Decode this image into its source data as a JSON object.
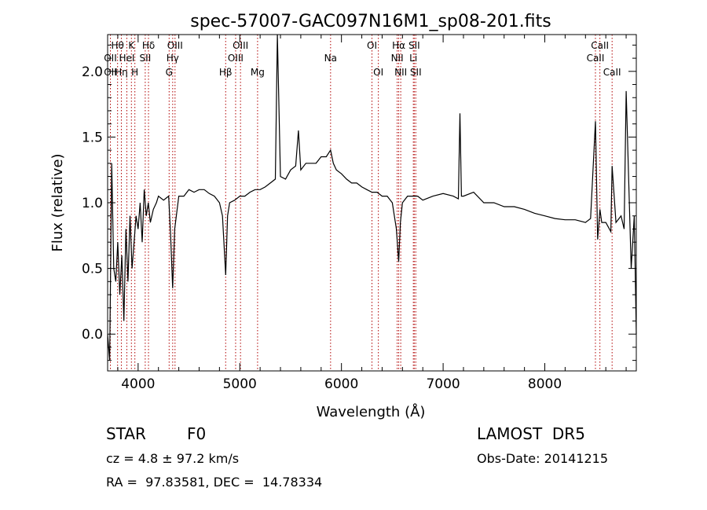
{
  "chart_data": {
    "type": "line",
    "title": "spec-57007-GAC097N16M1_sp08-201.fits",
    "xlabel": "Wavelength (Å)",
    "ylabel": "Flux (relative)",
    "xlim": [
      3700,
      8900
    ],
    "ylim": [
      -0.28,
      2.28
    ],
    "x_ticks": [
      4000,
      5000,
      6000,
      7000,
      8000
    ],
    "x_tick_labels": [
      "4000",
      "5000",
      "6000",
      "7000",
      "8000"
    ],
    "y_ticks": [
      0.0,
      0.5,
      1.0,
      1.5,
      2.0
    ],
    "y_tick_labels": [
      "0.0",
      "0.5",
      "1.0",
      "1.5",
      "2.0"
    ],
    "grid": false,
    "series": [
      {
        "x": [
          3700,
          3720,
          3740,
          3760,
          3780,
          3800,
          3820,
          3840,
          3860,
          3880,
          3900,
          3920,
          3940,
          3960,
          3980,
          4000,
          4020,
          4040,
          4060,
          4080,
          4100,
          4120,
          4150,
          4180,
          4200,
          4250,
          4300,
          4320,
          4340,
          4360,
          4400,
          4450,
          4500,
          4550,
          4600,
          4650,
          4700,
          4750,
          4800,
          4830,
          4861,
          4880,
          4900,
          4950,
          5000,
          5050,
          5100,
          5150,
          5200,
          5250,
          5300,
          5350,
          5370,
          5400,
          5450,
          5500,
          5550,
          5577,
          5600,
          5650,
          5700,
          5750,
          5800,
          5850,
          5893,
          5920,
          5950,
          6000,
          6050,
          6100,
          6150,
          6200,
          6250,
          6300,
          6350,
          6400,
          6450,
          6500,
          6540,
          6563,
          6580,
          6600,
          6650,
          6700,
          6750,
          6800,
          6900,
          7000,
          7100,
          7150,
          7165,
          7180,
          7200,
          7300,
          7400,
          7500,
          7600,
          7700,
          7800,
          7900,
          8000,
          8100,
          8200,
          8300,
          8400,
          8450,
          8498,
          8520,
          8542,
          8560,
          8600,
          8650,
          8662,
          8700,
          8750,
          8780,
          8800,
          8850,
          8880,
          8900
        ],
        "y": [
          0.0,
          -0.2,
          1.3,
          0.5,
          0.4,
          0.7,
          0.3,
          0.6,
          0.1,
          0.8,
          0.4,
          0.9,
          0.5,
          0.7,
          0.9,
          0.8,
          1.0,
          0.7,
          1.1,
          0.9,
          1.0,
          0.85,
          0.95,
          1.0,
          1.05,
          1.02,
          1.05,
          0.75,
          0.35,
          0.8,
          1.05,
          1.05,
          1.1,
          1.08,
          1.1,
          1.1,
          1.07,
          1.05,
          1.0,
          0.9,
          0.45,
          0.9,
          1.0,
          1.02,
          1.05,
          1.05,
          1.08,
          1.1,
          1.1,
          1.12,
          1.15,
          1.18,
          2.28,
          1.2,
          1.18,
          1.25,
          1.28,
          1.55,
          1.25,
          1.3,
          1.3,
          1.3,
          1.35,
          1.35,
          1.4,
          1.3,
          1.25,
          1.22,
          1.18,
          1.15,
          1.15,
          1.12,
          1.1,
          1.08,
          1.08,
          1.05,
          1.05,
          1.0,
          0.8,
          0.55,
          0.85,
          1.0,
          1.05,
          1.05,
          1.05,
          1.02,
          1.05,
          1.07,
          1.05,
          1.03,
          1.68,
          1.05,
          1.05,
          1.08,
          1.0,
          1.0,
          0.97,
          0.97,
          0.95,
          0.92,
          0.9,
          0.88,
          0.87,
          0.87,
          0.85,
          0.88,
          1.62,
          0.72,
          0.95,
          0.85,
          0.85,
          0.78,
          1.28,
          0.85,
          0.9,
          0.8,
          1.85,
          0.5,
          0.9,
          0.0
        ]
      }
    ],
    "lines": [
      {
        "label": "Hθ",
        "x": 3798,
        "row": 0
      },
      {
        "label": "OII",
        "x": 3727,
        "row": 1
      },
      {
        "label": "OII",
        "x": 3727,
        "row": 2
      },
      {
        "label": "Hη",
        "x": 3835,
        "row": 2
      },
      {
        "label": "HeI",
        "x": 3889,
        "row": 1
      },
      {
        "label": "K",
        "x": 3934,
        "row": 0
      },
      {
        "label": "H",
        "x": 3968,
        "row": 2
      },
      {
        "label": "Hδ",
        "x": 4102,
        "row": 0
      },
      {
        "label": "SII",
        "x": 4070,
        "row": 1
      },
      {
        "label": "OIII",
        "x": 4363,
        "row": 0
      },
      {
        "label": "Hγ",
        "x": 4340,
        "row": 1
      },
      {
        "label": "G",
        "x": 4305,
        "row": 2
      },
      {
        "label": "Hβ",
        "x": 4861,
        "row": 2
      },
      {
        "label": "OIII",
        "x": 5007,
        "row": 0
      },
      {
        "label": "OIII",
        "x": 4959,
        "row": 1
      },
      {
        "label": "Mg",
        "x": 5175,
        "row": 2
      },
      {
        "label": "Na",
        "x": 5893,
        "row": 1
      },
      {
        "label": "OI",
        "x": 6300,
        "row": 0
      },
      {
        "label": "OI",
        "x": 6363,
        "row": 2
      },
      {
        "label": "Hα",
        "x": 6563,
        "row": 0
      },
      {
        "label": "SII",
        "x": 6716,
        "row": 0
      },
      {
        "label": "NII",
        "x": 6548,
        "row": 1
      },
      {
        "label": "Li",
        "x": 6707,
        "row": 1
      },
      {
        "label": "NII",
        "x": 6583,
        "row": 2
      },
      {
        "label": "SII",
        "x": 6731,
        "row": 2
      },
      {
        "label": "CaII",
        "x": 8542,
        "row": 0
      },
      {
        "label": "CaII",
        "x": 8498,
        "row": 1
      },
      {
        "label": "CaII",
        "x": 8662,
        "row": 2
      }
    ]
  },
  "info": {
    "object_class": "STAR",
    "subclass": "F0",
    "survey": "LAMOST  DR5",
    "redshift": "cz = 4.8 ± 97.2 km/s",
    "obs_date": "Obs-Date: 20141215",
    "coords": "RA =  97.83581, DEC =  14.78334"
  }
}
